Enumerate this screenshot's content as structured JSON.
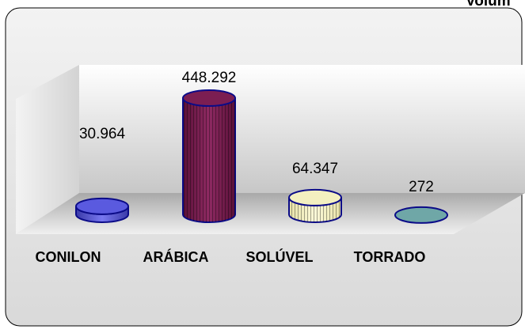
{
  "header": {
    "partial_title": "Volum"
  },
  "chart_data": {
    "type": "bar",
    "categories": [
      "CONILON",
      "ARÁBICA",
      "SOLÚVEL",
      "TORRADO"
    ],
    "values": [
      30964,
      448292,
      64347,
      272
    ],
    "value_labels": [
      "30.964",
      "448.292",
      "64.347",
      "272"
    ],
    "colors": {
      "CONILON": "#5a5adf",
      "ARÁBICA": "#7b1e52",
      "SOLÚVEL": "#f4f0c0",
      "TORRADO": "#6fa7a7",
      "outline": "#0b0b88"
    },
    "ylim": [
      0,
      448292
    ],
    "legend": "none",
    "grid": false
  }
}
